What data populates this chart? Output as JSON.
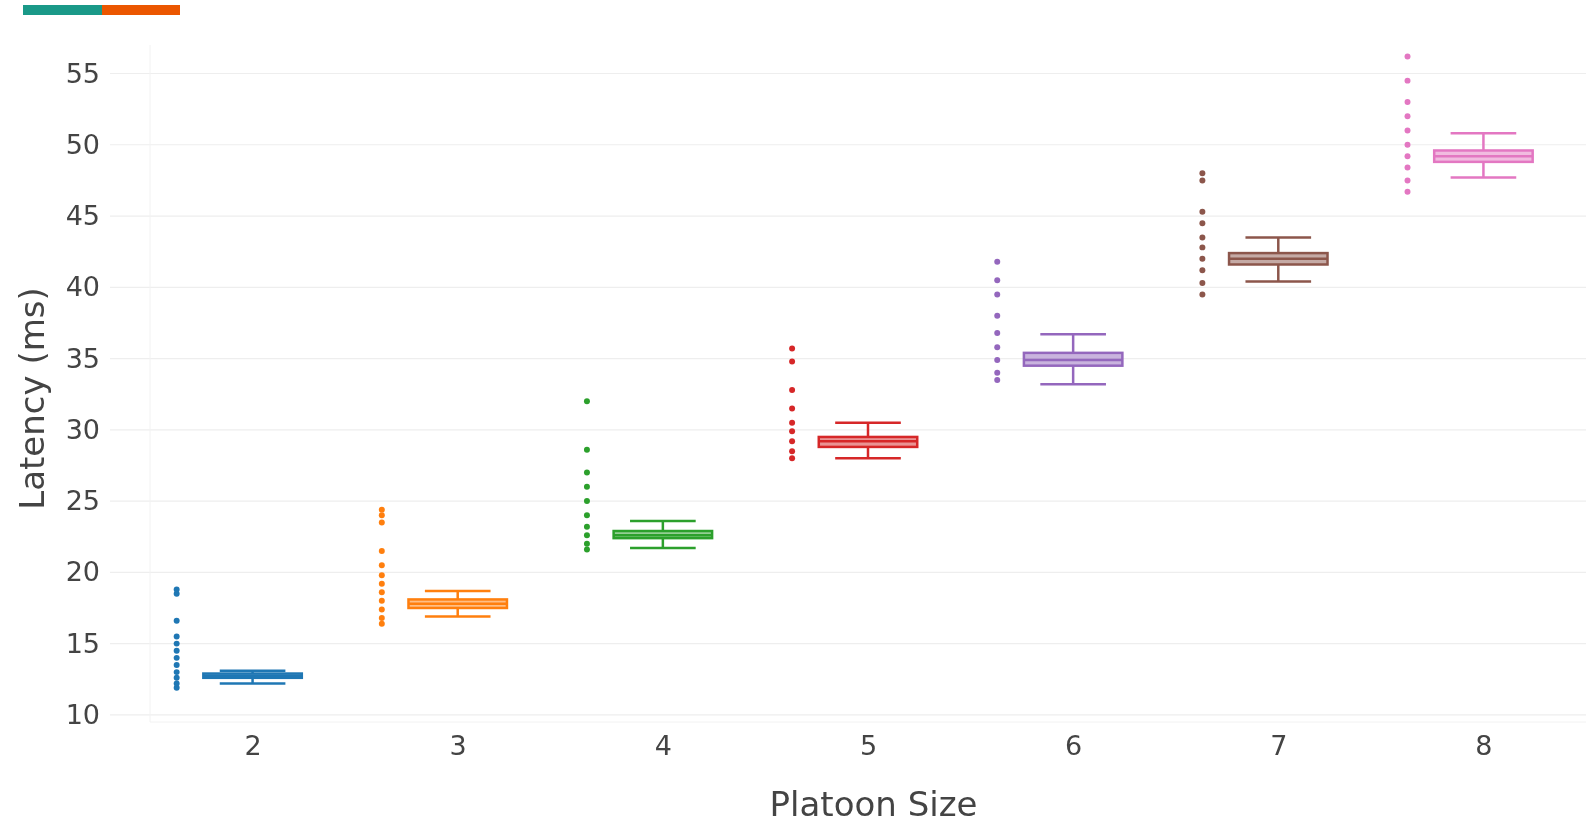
{
  "chart_data": {
    "type": "box",
    "xlabel": "Platoon Size",
    "ylabel": "Latency (ms)",
    "xlim": [
      1.5,
      8.5
    ],
    "xticks": [
      2,
      3,
      4,
      5,
      6,
      7,
      8
    ],
    "ylim": [
      9.5,
      57
    ],
    "yticks": [
      10,
      15,
      20,
      25,
      30,
      35,
      40,
      45,
      50,
      55
    ],
    "grid": "y",
    "marker": "circle",
    "series": [
      {
        "colors": [
          "#1f77b4",
          "#ff7f0e",
          "#2ca02c",
          "#d62728",
          "#9467bd",
          "#8c564b",
          "#e377c2"
        ],
        "x": [
          2,
          3,
          4,
          5,
          6,
          7,
          8
        ],
        "boxes": [
          {
            "low": 12.2,
            "q1": 12.6,
            "median": 12.75,
            "q3": 12.9,
            "high": 13.1
          },
          {
            "low": 16.9,
            "q1": 17.5,
            "median": 17.8,
            "q3": 18.1,
            "high": 18.7
          },
          {
            "low": 21.7,
            "q1": 22.4,
            "median": 22.6,
            "q3": 22.9,
            "high": 23.6
          },
          {
            "low": 28.0,
            "q1": 28.8,
            "median": 29.2,
            "q3": 29.5,
            "high": 30.5
          },
          {
            "low": 33.2,
            "q1": 34.5,
            "median": 34.9,
            "q3": 35.4,
            "high": 36.7
          },
          {
            "low": 40.4,
            "q1": 41.6,
            "median": 42.0,
            "q3": 42.4,
            "high": 43.5
          },
          {
            "low": 47.7,
            "q1": 48.8,
            "median": 49.2,
            "q3": 49.6,
            "high": 50.8
          }
        ]
      },
      {
        "type": "scatter",
        "color": "#1f77b4",
        "x": [
          1.63,
          1.63,
          1.63,
          1.63,
          1.63,
          1.63,
          1.63,
          1.63,
          1.63,
          1.63,
          1.63,
          1.63
        ],
        "values": [
          11.9,
          12.2,
          12.6,
          13.0,
          13.5,
          14.0,
          14.5,
          15.0,
          15.5,
          16.6,
          18.5,
          18.8
        ]
      },
      {
        "type": "scatter",
        "color": "#ff7f0e",
        "x": [
          2.63,
          2.63,
          2.63,
          2.63,
          2.63,
          2.63,
          2.63,
          2.63,
          2.63,
          2.63,
          2.63,
          2.63
        ],
        "values": [
          16.4,
          16.8,
          17.4,
          18.0,
          18.6,
          19.2,
          19.8,
          20.5,
          21.5,
          23.5,
          24.0,
          24.4
        ]
      },
      {
        "type": "scatter",
        "color": "#2ca02c",
        "x": [
          3.63,
          3.63,
          3.63,
          3.63,
          3.63,
          3.63,
          3.63,
          3.63,
          3.63,
          3.63
        ],
        "values": [
          21.6,
          22.0,
          22.6,
          23.2,
          24.0,
          25.0,
          26.0,
          27.0,
          28.6,
          32.0
        ]
      },
      {
        "type": "scatter",
        "color": "#d62728",
        "x": [
          4.63,
          4.63,
          4.63,
          4.63,
          4.63,
          4.63,
          4.63,
          4.63,
          4.63
        ],
        "values": [
          28.0,
          28.5,
          29.2,
          29.9,
          30.5,
          31.5,
          32.8,
          34.8,
          35.7
        ]
      },
      {
        "type": "scatter",
        "color": "#9467bd",
        "x": [
          5.63,
          5.63,
          5.63,
          5.63,
          5.63,
          5.63,
          5.63,
          5.63,
          5.63
        ],
        "values": [
          33.5,
          34.0,
          34.9,
          35.8,
          36.8,
          38.0,
          39.5,
          40.5,
          41.8
        ]
      },
      {
        "type": "scatter",
        "color": "#8c564b",
        "x": [
          6.63,
          6.63,
          6.63,
          6.63,
          6.63,
          6.63,
          6.63,
          6.63,
          6.63,
          6.63
        ],
        "values": [
          39.5,
          40.3,
          41.2,
          42.0,
          42.8,
          43.5,
          44.5,
          45.3,
          47.5,
          48.0
        ]
      },
      {
        "type": "scatter",
        "color": "#e377c2",
        "x": [
          7.63,
          7.63,
          7.63,
          7.63,
          7.63,
          7.63,
          7.63,
          7.63,
          7.63,
          7.63
        ],
        "values": [
          46.7,
          47.5,
          48.4,
          49.2,
          50.0,
          51.0,
          52.0,
          53.0,
          54.5,
          56.2
        ]
      }
    ]
  }
}
